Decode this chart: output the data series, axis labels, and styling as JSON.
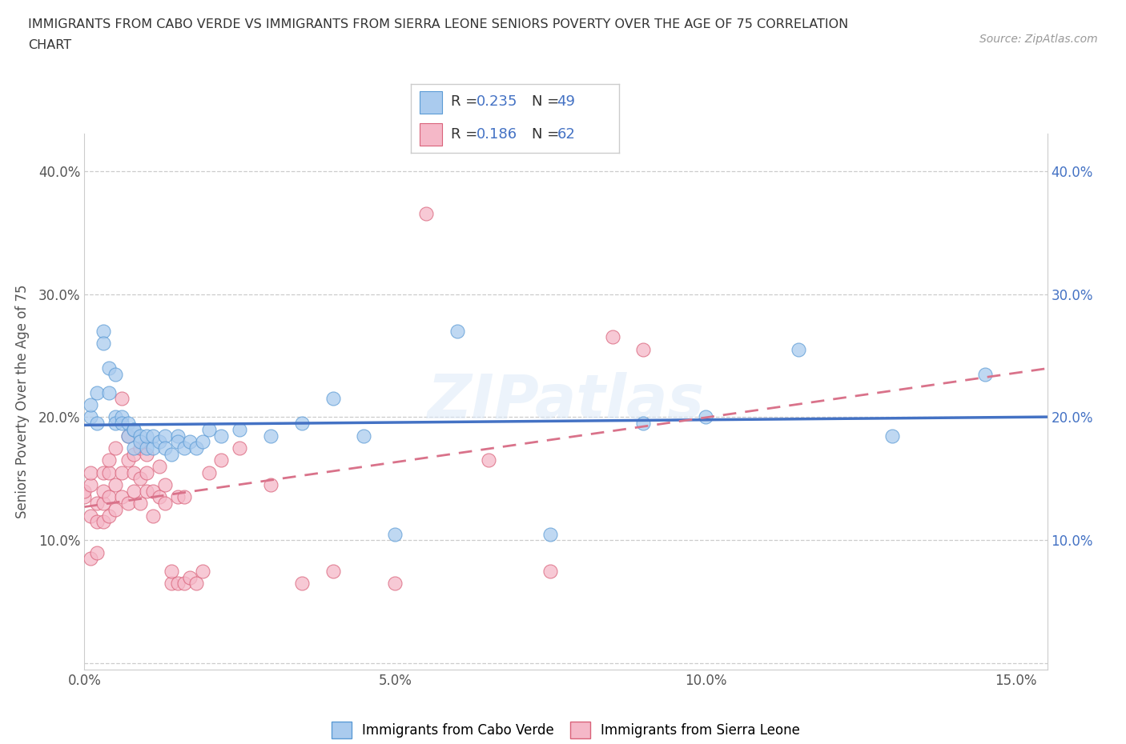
{
  "title_line1": "IMMIGRANTS FROM CABO VERDE VS IMMIGRANTS FROM SIERRA LEONE SENIORS POVERTY OVER THE AGE OF 75 CORRELATION",
  "title_line2": "CHART",
  "source": "Source: ZipAtlas.com",
  "ylabel": "Seniors Poverty Over the Age of 75",
  "cabo_verde_R": 0.235,
  "cabo_verde_N": 49,
  "sierra_leone_R": 0.186,
  "sierra_leone_N": 62,
  "cabo_verde_color": "#aacbee",
  "sierra_leone_color": "#f5b8c8",
  "cabo_verde_edge": "#5b9bd5",
  "sierra_leone_edge": "#d9627a",
  "cabo_verde_line": "#4472c4",
  "sierra_leone_line": "#d9728a",
  "xlim": [
    0.0,
    0.155
  ],
  "ylim": [
    -0.005,
    0.43
  ],
  "xticks": [
    0.0,
    0.05,
    0.1,
    0.15
  ],
  "xtick_labels": [
    "0.0%",
    "5.0%",
    "10.0%",
    "15.0%"
  ],
  "yticks": [
    0.0,
    0.1,
    0.2,
    0.3,
    0.4
  ],
  "ytick_labels": [
    "",
    "10.0%",
    "20.0%",
    "30.0%",
    "40.0%"
  ],
  "watermark": "ZIPatlas",
  "legend_label1": "Immigrants from Cabo Verde",
  "legend_label2": "Immigrants from Sierra Leone",
  "cabo_verde_x": [
    0.001,
    0.001,
    0.002,
    0.002,
    0.003,
    0.003,
    0.004,
    0.004,
    0.005,
    0.005,
    0.005,
    0.006,
    0.006,
    0.007,
    0.007,
    0.008,
    0.008,
    0.008,
    0.009,
    0.009,
    0.01,
    0.01,
    0.011,
    0.011,
    0.012,
    0.013,
    0.013,
    0.014,
    0.015,
    0.015,
    0.016,
    0.017,
    0.018,
    0.019,
    0.02,
    0.022,
    0.025,
    0.03,
    0.035,
    0.04,
    0.045,
    0.05,
    0.06,
    0.075,
    0.09,
    0.1,
    0.115,
    0.13,
    0.145
  ],
  "cabo_verde_y": [
    0.2,
    0.21,
    0.195,
    0.22,
    0.27,
    0.26,
    0.24,
    0.22,
    0.235,
    0.2,
    0.195,
    0.2,
    0.195,
    0.195,
    0.185,
    0.19,
    0.19,
    0.175,
    0.185,
    0.18,
    0.175,
    0.185,
    0.175,
    0.185,
    0.18,
    0.185,
    0.175,
    0.17,
    0.185,
    0.18,
    0.175,
    0.18,
    0.175,
    0.18,
    0.19,
    0.185,
    0.19,
    0.185,
    0.195,
    0.215,
    0.185,
    0.105,
    0.27,
    0.105,
    0.195,
    0.2,
    0.255,
    0.185,
    0.235
  ],
  "sierra_leone_x": [
    0.0,
    0.0,
    0.001,
    0.001,
    0.001,
    0.001,
    0.002,
    0.002,
    0.002,
    0.003,
    0.003,
    0.003,
    0.003,
    0.004,
    0.004,
    0.004,
    0.004,
    0.005,
    0.005,
    0.005,
    0.006,
    0.006,
    0.006,
    0.007,
    0.007,
    0.007,
    0.008,
    0.008,
    0.008,
    0.009,
    0.009,
    0.009,
    0.01,
    0.01,
    0.01,
    0.011,
    0.011,
    0.012,
    0.012,
    0.013,
    0.013,
    0.014,
    0.014,
    0.015,
    0.015,
    0.016,
    0.016,
    0.017,
    0.018,
    0.019,
    0.02,
    0.022,
    0.025,
    0.03,
    0.035,
    0.04,
    0.05,
    0.055,
    0.065,
    0.075,
    0.085,
    0.09
  ],
  "sierra_leone_y": [
    0.135,
    0.14,
    0.085,
    0.12,
    0.145,
    0.155,
    0.09,
    0.115,
    0.13,
    0.115,
    0.13,
    0.14,
    0.155,
    0.12,
    0.135,
    0.155,
    0.165,
    0.125,
    0.145,
    0.175,
    0.135,
    0.155,
    0.215,
    0.13,
    0.165,
    0.185,
    0.14,
    0.155,
    0.17,
    0.13,
    0.15,
    0.175,
    0.14,
    0.155,
    0.17,
    0.12,
    0.14,
    0.135,
    0.16,
    0.13,
    0.145,
    0.065,
    0.075,
    0.065,
    0.135,
    0.065,
    0.135,
    0.07,
    0.065,
    0.075,
    0.155,
    0.165,
    0.175,
    0.145,
    0.065,
    0.075,
    0.065,
    0.365,
    0.165,
    0.075,
    0.265,
    0.255
  ]
}
